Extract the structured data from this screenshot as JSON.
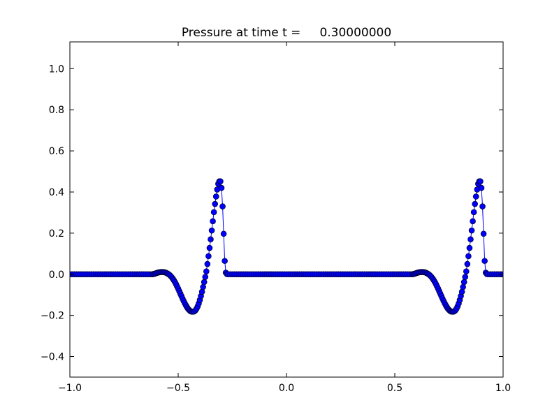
{
  "chart_data": {
    "type": "line",
    "title": "Pressure at time t =     0.30000000",
    "x": [
      -1.0,
      -0.99,
      -0.98,
      -0.97,
      -0.96,
      -0.95,
      -0.94,
      -0.93,
      -0.92,
      -0.91,
      -0.9,
      -0.89,
      -0.88,
      -0.87,
      -0.86,
      -0.85,
      -0.84,
      -0.83,
      -0.82,
      -0.81,
      -0.8,
      -0.79,
      -0.78,
      -0.77,
      -0.76,
      -0.75,
      -0.74,
      -0.73,
      -0.72,
      -0.71,
      -0.7,
      -0.69,
      -0.68,
      -0.67,
      -0.66,
      -0.65,
      -0.64,
      -0.63,
      -0.62,
      -0.615,
      -0.61,
      -0.605,
      -0.6,
      -0.595,
      -0.59,
      -0.585,
      -0.58,
      -0.575,
      -0.57,
      -0.565,
      -0.56,
      -0.555,
      -0.55,
      -0.545,
      -0.54,
      -0.535,
      -0.53,
      -0.525,
      -0.52,
      -0.515,
      -0.51,
      -0.505,
      -0.5,
      -0.495,
      -0.49,
      -0.485,
      -0.48,
      -0.475,
      -0.47,
      -0.465,
      -0.46,
      -0.455,
      -0.45,
      -0.445,
      -0.44,
      -0.435,
      -0.43,
      -0.425,
      -0.42,
      -0.415,
      -0.41,
      -0.405,
      -0.4,
      -0.395,
      -0.39,
      -0.385,
      -0.38,
      -0.375,
      -0.37,
      -0.365,
      -0.36,
      -0.355,
      -0.35,
      -0.345,
      -0.34,
      -0.335,
      -0.33,
      -0.325,
      -0.32,
      -0.315,
      -0.31,
      -0.305,
      -0.3,
      -0.295,
      -0.29,
      -0.285,
      -0.28,
      -0.275,
      -0.27,
      -0.26,
      -0.25,
      -0.24,
      -0.23,
      -0.22,
      -0.21,
      -0.2,
      -0.19,
      -0.18,
      -0.17,
      -0.16,
      -0.15,
      -0.14,
      -0.13,
      -0.12,
      -0.11,
      -0.1,
      -0.09,
      -0.08,
      -0.07,
      -0.06,
      -0.05,
      -0.04,
      -0.03,
      -0.02,
      -0.01,
      0,
      0.01,
      0.02,
      0.03,
      0.04,
      0.05,
      0.06,
      0.07,
      0.08,
      0.09,
      0.1,
      0.11,
      0.12,
      0.13,
      0.14,
      0.15,
      0.16,
      0.17,
      0.18,
      0.19,
      0.2,
      0.21,
      0.22,
      0.23,
      0.24,
      0.25,
      0.26,
      0.27,
      0.28,
      0.29,
      0.3,
      0.31,
      0.32,
      0.33,
      0.34,
      0.35,
      0.36,
      0.37,
      0.38,
      0.39,
      0.4,
      0.41,
      0.42,
      0.43,
      0.44,
      0.45,
      0.46,
      0.47,
      0.48,
      0.49,
      0.5,
      0.51,
      0.52,
      0.53,
      0.54,
      0.55,
      0.56,
      0.57,
      0.58,
      0.585,
      0.59,
      0.595,
      0.6,
      0.605,
      0.61,
      0.615,
      0.62,
      0.625,
      0.63,
      0.635,
      0.64,
      0.645,
      0.65,
      0.655,
      0.66,
      0.665,
      0.67,
      0.675,
      0.68,
      0.685,
      0.69,
      0.695,
      0.7,
      0.705,
      0.71,
      0.715,
      0.72,
      0.725,
      0.73,
      0.735,
      0.74,
      0.745,
      0.75,
      0.755,
      0.76,
      0.765,
      0.77,
      0.775,
      0.78,
      0.785,
      0.79,
      0.795,
      0.8,
      0.805,
      0.81,
      0.815,
      0.82,
      0.825,
      0.83,
      0.835,
      0.84,
      0.845,
      0.85,
      0.855,
      0.86,
      0.865,
      0.87,
      0.875,
      0.88,
      0.885,
      0.89,
      0.895,
      0.9,
      0.905,
      0.91,
      0.915,
      0.92,
      0.925,
      0.93,
      0.94,
      0.95,
      0.96,
      0.97,
      0.98,
      0.99,
      1.0
    ],
    "values": [
      0,
      0,
      0,
      0,
      0,
      0,
      0,
      0,
      0,
      0,
      0,
      0,
      0,
      0,
      0,
      0,
      0,
      0,
      0,
      0,
      0,
      0,
      0,
      0,
      0,
      0,
      0,
      0,
      0,
      0,
      0,
      0,
      0,
      0,
      0,
      0,
      0,
      0,
      0,
      0.001,
      0.002,
      0.004,
      0.006,
      0.008,
      0.009,
      0.01,
      0.011,
      0.011,
      0.011,
      0.01,
      0.009,
      0.007,
      0.004,
      0.001,
      -0.003,
      -0.008,
      -0.014,
      -0.021,
      -0.029,
      -0.038,
      -0.048,
      -0.059,
      -0.07,
      -0.082,
      -0.094,
      -0.106,
      -0.118,
      -0.129,
      -0.14,
      -0.15,
      -0.159,
      -0.167,
      -0.173,
      -0.178,
      -0.181,
      -0.182,
      -0.182,
      -0.18,
      -0.175,
      -0.167,
      -0.156,
      -0.142,
      -0.125,
      -0.106,
      -0.085,
      -0.062,
      -0.038,
      -0.013,
      0.014,
      0.05,
      0.088,
      0.128,
      0.17,
      0.213,
      0.258,
      0.302,
      0.342,
      0.378,
      0.412,
      0.44,
      0.452,
      0.452,
      0.42,
      0.33,
      0.197,
      0.065,
      0.008,
      0.001,
      0,
      0,
      0,
      0,
      0,
      0,
      0,
      0,
      0,
      0,
      0,
      0,
      0,
      0,
      0,
      0,
      0,
      0,
      0,
      0,
      0,
      0,
      0,
      0,
      0,
      0,
      0,
      0,
      0,
      0,
      0,
      0,
      0,
      0,
      0,
      0,
      0,
      0,
      0,
      0,
      0,
      0,
      0,
      0,
      0,
      0,
      0,
      0,
      0,
      0,
      0,
      0,
      0,
      0,
      0,
      0,
      0,
      0,
      0,
      0,
      0,
      0,
      0,
      0,
      0,
      0,
      0,
      0,
      0,
      0,
      0,
      0,
      0,
      0,
      0,
      0,
      0,
      0,
      0,
      0,
      0,
      0,
      0,
      0,
      0,
      0,
      0.001,
      0.002,
      0.004,
      0.006,
      0.008,
      0.009,
      0.01,
      0.011,
      0.011,
      0.011,
      0.01,
      0.009,
      0.007,
      0.004,
      0.001,
      -0.003,
      -0.008,
      -0.014,
      -0.021,
      -0.029,
      -0.038,
      -0.048,
      -0.059,
      -0.07,
      -0.082,
      -0.094,
      -0.106,
      -0.118,
      -0.129,
      -0.14,
      -0.15,
      -0.159,
      -0.167,
      -0.173,
      -0.178,
      -0.181,
      -0.182,
      -0.182,
      -0.18,
      -0.175,
      -0.167,
      -0.156,
      -0.142,
      -0.125,
      -0.106,
      -0.085,
      -0.062,
      -0.038,
      -0.013,
      0.014,
      0.05,
      0.088,
      0.128,
      0.17,
      0.213,
      0.258,
      0.302,
      0.342,
      0.378,
      0.412,
      0.44,
      0.452,
      0.452,
      0.42,
      0.33,
      0.197,
      0.065,
      0.008,
      0.001,
      0,
      0,
      0,
      0,
      0,
      0,
      0,
      0
    ],
    "color": "#0000ff",
    "xlim": [
      -1.0,
      1.0
    ],
    "xticks": [
      {
        "value": -1.0,
        "label": "−1.0"
      },
      {
        "value": -0.5,
        "label": "−0.5"
      },
      {
        "value": 0,
        "label": "0.0"
      },
      {
        "value": 0.5,
        "label": "0.5"
      },
      {
        "value": 1.0,
        "label": "1.0"
      }
    ],
    "ylim": [
      -0.5,
      1.13
    ],
    "yticks": [
      {
        "value": -0.4,
        "label": "−0.4"
      },
      {
        "value": -0.2,
        "label": "−0.2"
      },
      {
        "value": 0,
        "label": "0.0"
      },
      {
        "value": 0.2,
        "label": "0.2"
      },
      {
        "value": 0.4,
        "label": "0.4"
      },
      {
        "value": 0.6,
        "label": "0.6"
      },
      {
        "value": 0.8,
        "label": "0.8"
      },
      {
        "value": 1.0,
        "label": "1.0"
      }
    ],
    "grid": false
  }
}
